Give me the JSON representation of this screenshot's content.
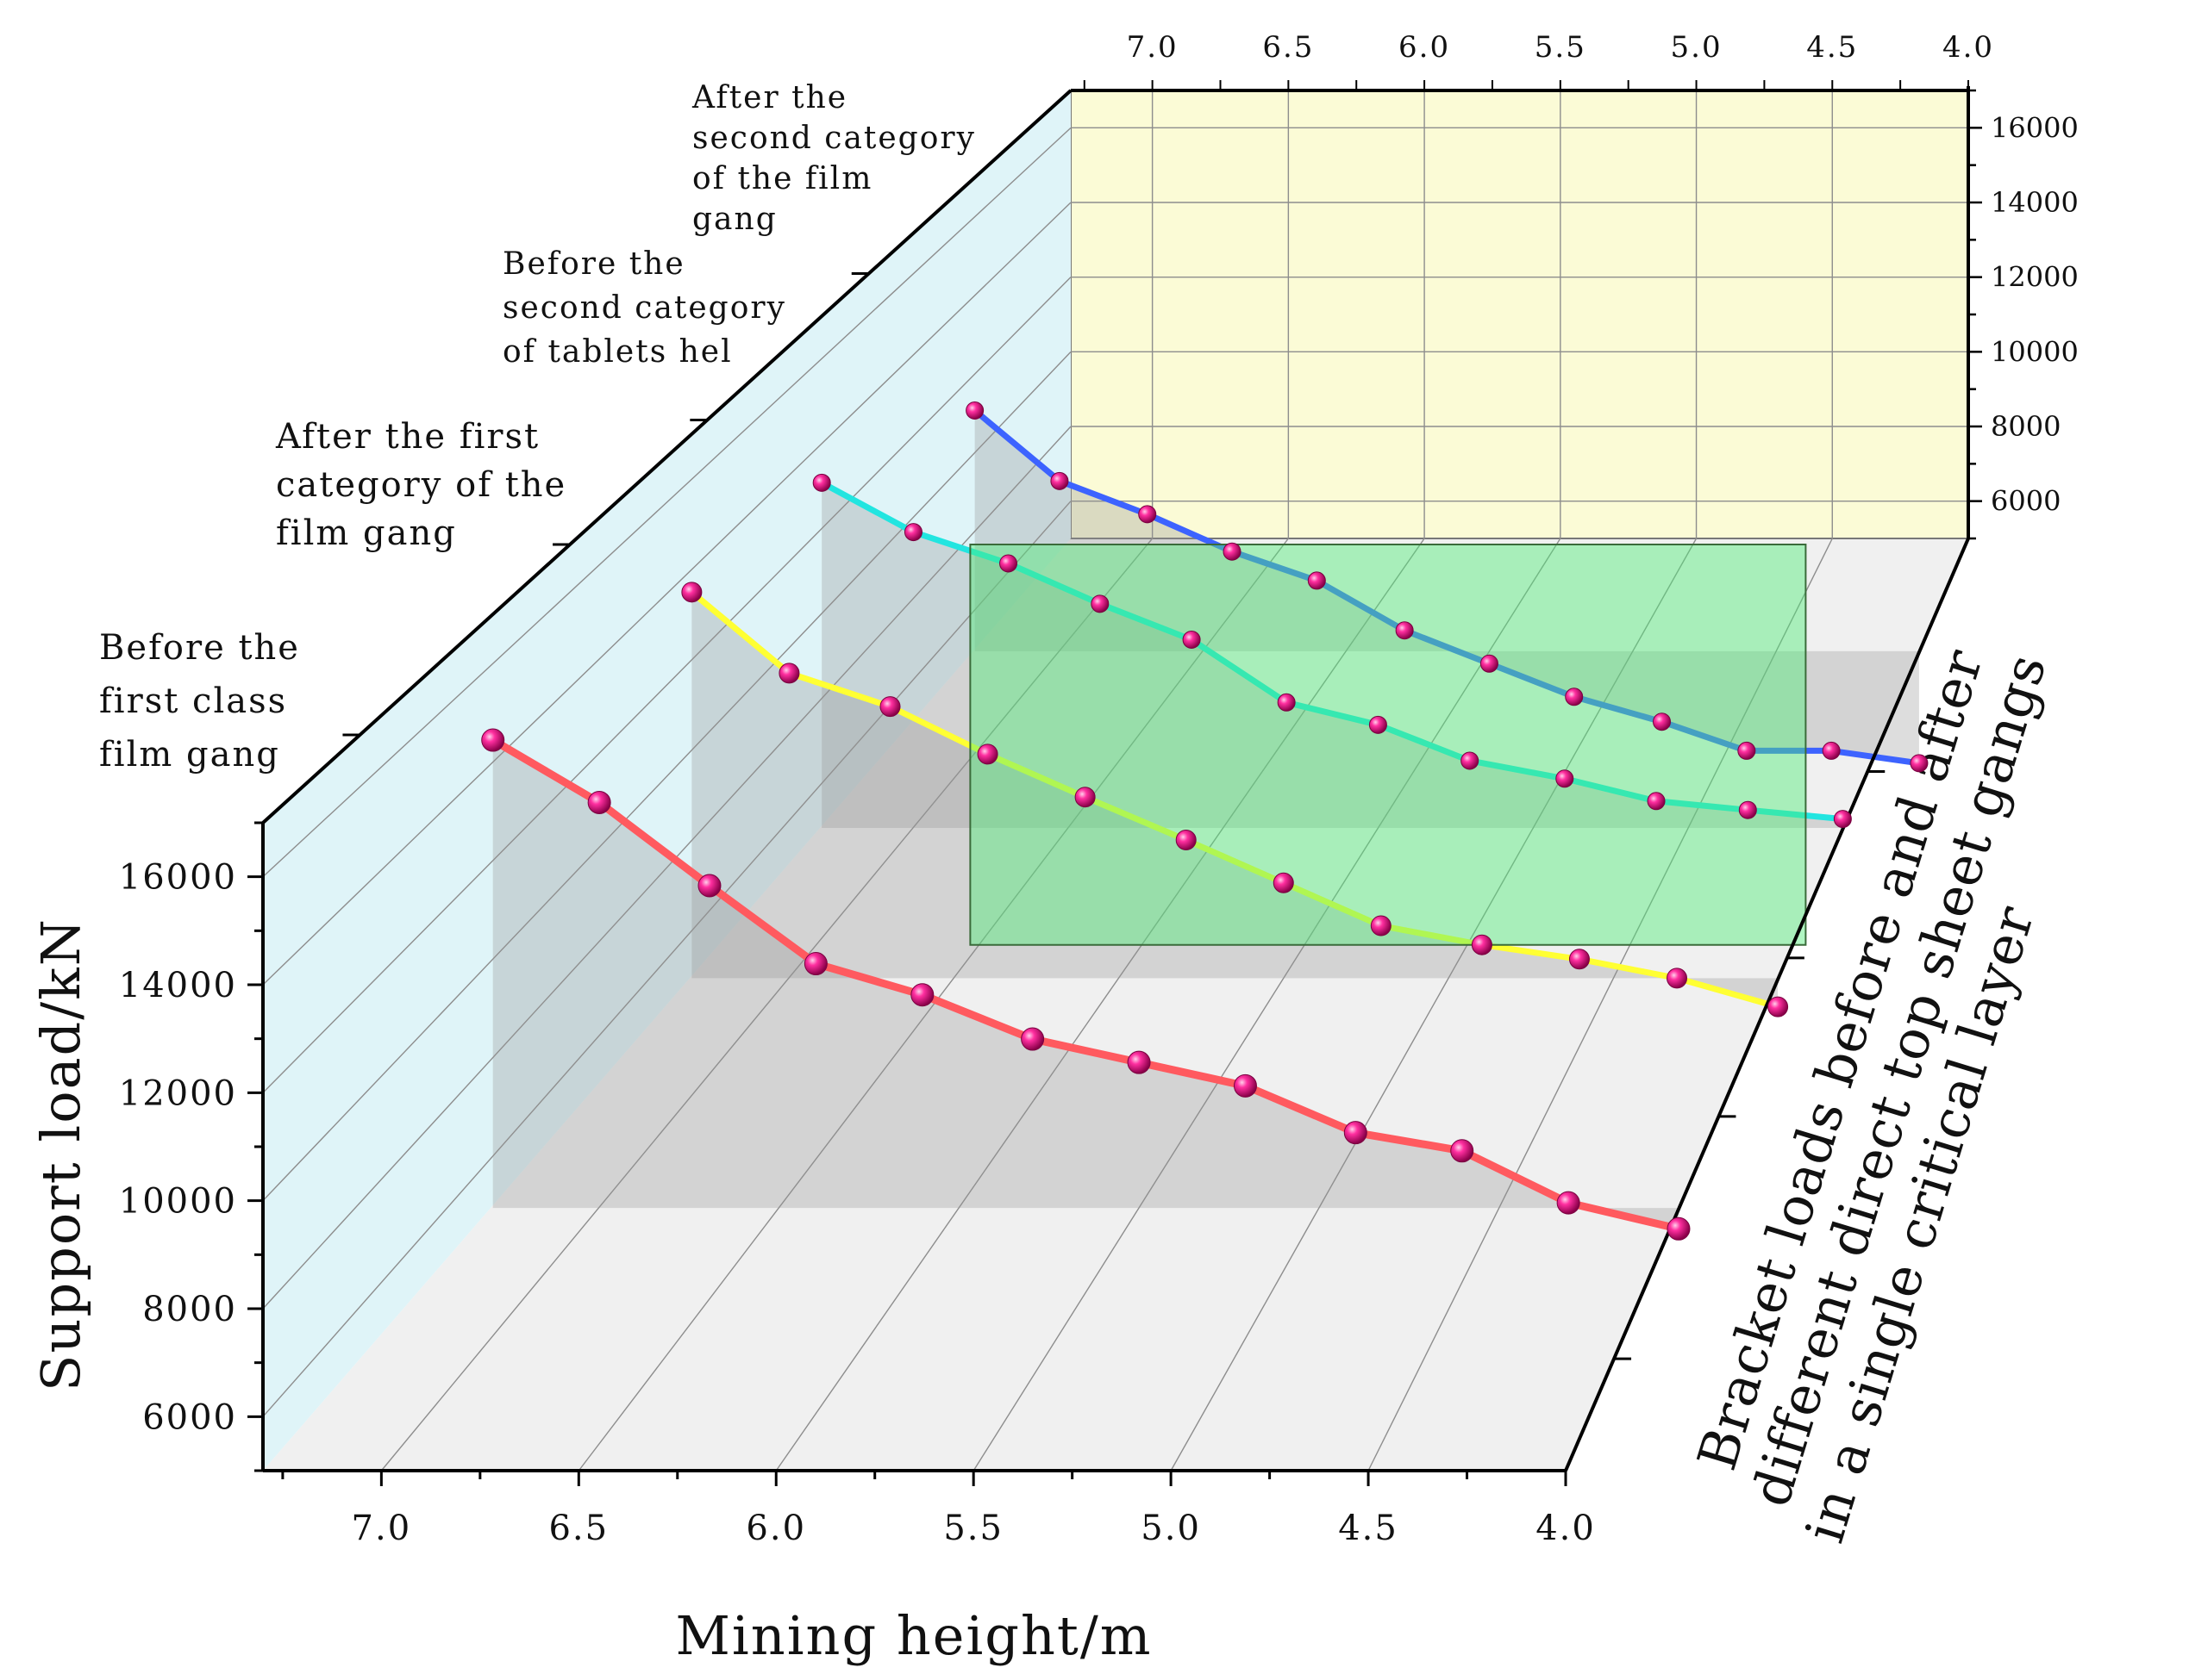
{
  "chart_data": {
    "type": "line",
    "projection": "3d",
    "xlabel": "Mining height/m",
    "ylabel": "Support load/kN",
    "zlabel_lines": [
      "Bracket loads before and after",
      "different direct top sheet gangs",
      "in a single critical layer"
    ],
    "xlim": [
      7.3,
      4.0
    ],
    "ylim": [
      5000,
      17000
    ],
    "x_ticks": [
      "7.0",
      "6.5",
      "6.0",
      "5.5",
      "5.0",
      "4.5",
      "4.0"
    ],
    "y_ticks": [
      "6000",
      "8000",
      "10000",
      "12000",
      "14000",
      "16000"
    ],
    "x": [
      6.95,
      6.67,
      6.38,
      6.1,
      5.82,
      5.53,
      5.25,
      4.97,
      4.68,
      4.4,
      4.12,
      3.83
    ],
    "series": [
      {
        "name": "Before the first class film gang",
        "label_lines": [
          "Before the",
          "first class",
          "film gang"
        ],
        "color": "#ff5a5f",
        "values": [
          16900,
          15700,
          14100,
          12600,
          12000,
          11150,
          10700,
          10250,
          9350,
          9000,
          8000,
          7500
        ]
      },
      {
        "name": "After the first category of the film gang",
        "label_lines": [
          "After the first",
          "category of the",
          "film gang"
        ],
        "color": "#ffff33",
        "values": [
          16000,
          14300,
          13600,
          12600,
          11700,
          10800,
          9900,
          9000,
          8600,
          8300,
          7900,
          7300
        ]
      },
      {
        "name": "Before the second category of tablets hel",
        "label_lines": [
          "Before the",
          "second category",
          "of tablets hel"
        ],
        "color": "#22e5e0",
        "values": [
          15600,
          14500,
          13800,
          12900,
          12100,
          10700,
          10200,
          9400,
          9000,
          8500,
          8300,
          8100
        ]
      },
      {
        "name": "After the second category of the film gang",
        "label_lines": [
          "After the",
          "second category",
          "of the film",
          "gang"
        ],
        "color": "#3d63ff",
        "values": [
          13700,
          12000,
          11200,
          10300,
          9600,
          8400,
          7600,
          6800,
          6200,
          5500,
          5500,
          5200
        ]
      }
    ]
  }
}
